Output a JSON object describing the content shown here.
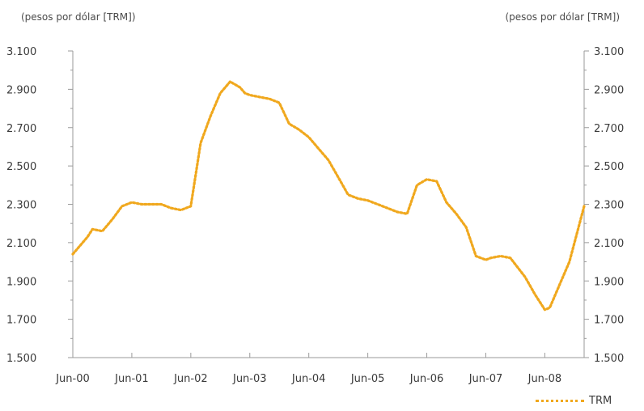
{
  "chart_data": {
    "type": "line",
    "ylabel_left": "(pesos por dólar [TRM])",
    "ylabel_right": "(pesos por dólar [TRM])",
    "ylim": [
      1500,
      3100
    ],
    "yticks": [
      1500,
      1700,
      1900,
      2100,
      2300,
      2500,
      2700,
      2900,
      3100
    ],
    "ytick_labels": [
      "1.500",
      "1.700",
      "1.900",
      "2.100",
      "2.300",
      "2.500",
      "2.700",
      "2.900",
      "3.100"
    ],
    "x_tick_labels": [
      "Jun-00",
      "Jun-01",
      "Jun-02",
      "Jun-03",
      "Jun-04",
      "Jun-05",
      "Jun-06",
      "Jun-07",
      "Jun-08"
    ],
    "x_tick_months": [
      0,
      12,
      24,
      36,
      48,
      60,
      72,
      84,
      96
    ],
    "xlim_months": [
      0,
      104
    ],
    "grid": false,
    "legend_position": "bottom-right",
    "series": [
      {
        "name": "TRM",
        "color": "#f0a81e",
        "x_months": [
          0,
          3,
          4,
          6,
          8,
          10,
          12,
          14,
          16,
          18,
          20,
          22,
          24,
          26,
          28,
          30,
          32,
          34,
          35,
          36,
          38,
          40,
          42,
          44,
          46,
          48,
          50,
          52,
          54,
          56,
          58,
          60,
          62,
          64,
          66,
          68,
          70,
          72,
          74,
          76,
          78,
          80,
          82,
          84,
          85,
          87,
          89,
          92,
          94,
          96,
          97,
          99,
          101,
          104
        ],
        "values": [
          2040,
          2130,
          2170,
          2160,
          2220,
          2290,
          2310,
          2300,
          2300,
          2300,
          2280,
          2270,
          2290,
          2620,
          2760,
          2880,
          2940,
          2910,
          2880,
          2870,
          2860,
          2850,
          2830,
          2720,
          2690,
          2650,
          2590,
          2530,
          2440,
          2350,
          2330,
          2320,
          2300,
          2280,
          2260,
          2250,
          2400,
          2430,
          2420,
          2310,
          2250,
          2180,
          2030,
          2010,
          2020,
          2030,
          2020,
          1920,
          1830,
          1750,
          1760,
          1880,
          2000,
          2290
        ]
      }
    ]
  }
}
